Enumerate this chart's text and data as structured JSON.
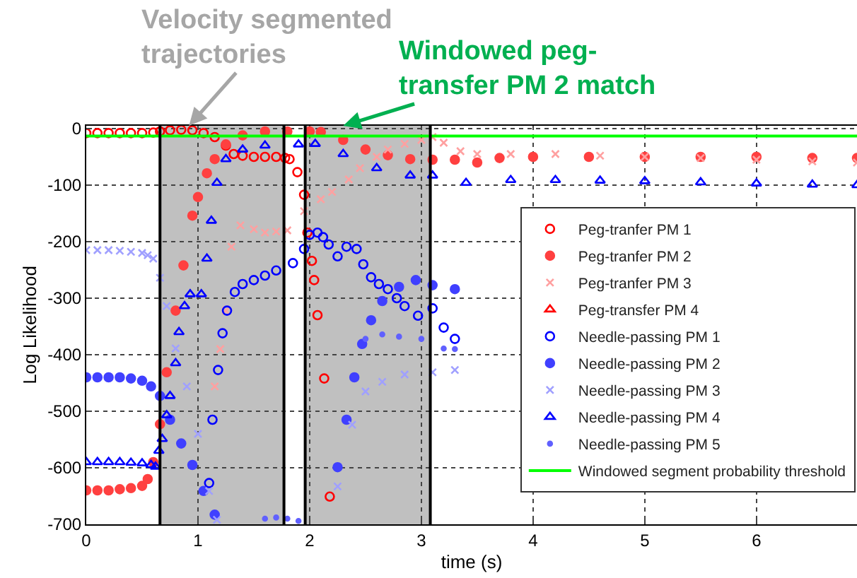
{
  "chart_data": {
    "type": "scatter",
    "xlabel": "time (s)",
    "ylabel": "Log Likelihood",
    "xlim": [
      0,
      6.9
    ],
    "ylim": [
      -700,
      5
    ],
    "xticks": [
      0,
      1,
      2,
      3,
      4,
      5,
      6
    ],
    "yticks": [
      -700,
      -600,
      -500,
      -400,
      -300,
      -200,
      -100,
      0
    ],
    "grid": true,
    "legend": "right",
    "bands": [
      {
        "axis": "x",
        "from": 0.66,
        "to": 1.77,
        "color": "#c0c0c0"
      },
      {
        "axis": "x",
        "from": 1.96,
        "to": 3.08,
        "color": "#c0c0c0"
      }
    ],
    "ref_lines": [
      {
        "axis": "x",
        "value": 0.66,
        "color": "#000000"
      },
      {
        "axis": "x",
        "value": 1.77,
        "color": "#000000"
      },
      {
        "axis": "x",
        "value": 1.96,
        "color": "#000000"
      },
      {
        "axis": "x",
        "value": 3.08,
        "color": "#000000"
      }
    ],
    "annotations": [
      {
        "text": "Velocity segmented\ntrajectories",
        "x": 0.92,
        "y": 5
      },
      {
        "text": "Windowed peg-\ntransfer PM 2 match",
        "x": 2.3,
        "y": 5
      }
    ],
    "series": [
      {
        "name": "Peg-tranfer PM 1",
        "color": "#ff0000",
        "marker": "circle",
        "x": [
          0,
          0.1,
          0.2,
          0.3,
          0.4,
          0.5,
          0.6,
          0.66,
          0.75,
          0.85,
          0.95,
          1.05,
          1.15,
          1.25,
          1.32,
          1.4,
          1.5,
          1.6,
          1.7,
          1.78,
          1.82,
          1.89,
          1.95,
          1.98,
          2.02,
          2.04,
          2.07,
          2.13,
          2.18
        ],
        "values": [
          -8,
          -8,
          -8,
          -8,
          -8,
          -8,
          -7,
          -5,
          -3,
          -2,
          -3,
          -8,
          -15,
          -30,
          -45,
          -48,
          -50,
          -50,
          -50,
          -52,
          -54,
          -77,
          -117,
          -184,
          -234,
          -268,
          -330,
          -442,
          -651
        ]
      },
      {
        "name": "Peg-tranfer PM 2",
        "color": "#ff4040",
        "marker": "circle-filled",
        "x": [
          0,
          0.1,
          0.2,
          0.3,
          0.4,
          0.5,
          0.55,
          0.6,
          0.66,
          0.72,
          0.8,
          0.87,
          0.95,
          1.0,
          1.08,
          1.15,
          1.25,
          1.4,
          1.6,
          1.8,
          2.0,
          2.1,
          2.3,
          2.5,
          2.7,
          2.9,
          3.1,
          3.3,
          3.5,
          3.7,
          4.0,
          4.5,
          5.0,
          5.5,
          6.0,
          6.5,
          6.9
        ],
        "values": [
          -640,
          -640,
          -640,
          -638,
          -636,
          -632,
          -620,
          -590,
          -523,
          -431,
          -322,
          -242,
          -154,
          -121,
          -79,
          -54,
          -28,
          -12,
          -5,
          -5,
          -5,
          -6,
          -20,
          -37,
          -47,
          -54,
          -55,
          -55,
          -60,
          -52,
          -50,
          -50,
          -50,
          -50,
          -50,
          -52,
          -52
        ]
      },
      {
        "name": "Peg-tranfer PM 3",
        "color": "#ffa0a0",
        "marker": "cross",
        "x": [
          1.15,
          1.2,
          1.25,
          1.3,
          1.38,
          1.5,
          1.6,
          1.7,
          1.8,
          1.95,
          2.1,
          2.2,
          2.35,
          2.45,
          2.6,
          2.7,
          2.85,
          3.0,
          3.1,
          3.2,
          3.35,
          3.5,
          3.8,
          4.2,
          4.6,
          5.0,
          5.5,
          6.0,
          6.5,
          6.9
        ],
        "values": [
          -456,
          -390,
          -322,
          -209,
          -171,
          -178,
          -184,
          -182,
          -180,
          -146,
          -125,
          -112,
          -90,
          -70,
          -50,
          -37,
          -27,
          -20,
          -15,
          -25,
          -40,
          -45,
          -45,
          -45,
          -48,
          -50,
          -52,
          -55,
          -58,
          -60
        ]
      },
      {
        "name": "Peg-transfer PM 4",
        "color": "#ff0000",
        "marker": "triangle"
      },
      {
        "name": "Needle-passing PM 1",
        "color": "#0000ff",
        "marker": "circle",
        "x": [
          1.1,
          1.13,
          1.18,
          1.22,
          1.26,
          1.33,
          1.4,
          1.5,
          1.6,
          1.7,
          1.85,
          1.95,
          2.0,
          2.07,
          2.12,
          2.17,
          2.25,
          2.33,
          2.42,
          2.48,
          2.55,
          2.62,
          2.7,
          2.78,
          2.85,
          2.97,
          3.1,
          3.2,
          3.3
        ],
        "values": [
          -627,
          -515,
          -427,
          -362,
          -322,
          -289,
          -275,
          -268,
          -260,
          -251,
          -238,
          -213,
          -188,
          -184,
          -192,
          -205,
          -226,
          -209,
          -213,
          -240,
          -263,
          -275,
          -284,
          -300,
          -314,
          -331,
          -318,
          -352,
          -372
        ]
      },
      {
        "name": "Needle-passing PM 2",
        "color": "#4040ff",
        "marker": "circle-filled",
        "x": [
          0,
          0.1,
          0.2,
          0.3,
          0.4,
          0.5,
          0.58,
          0.66,
          0.75,
          0.85,
          0.95,
          1.05,
          1.15,
          2.25,
          2.33,
          2.4,
          2.47,
          2.55,
          2.65,
          2.8,
          2.95,
          3.1,
          3.3
        ],
        "values": [
          -440,
          -440,
          -440,
          -440,
          -442,
          -446,
          -456,
          -473,
          -515,
          -557,
          -595,
          -641,
          -683,
          -599,
          -515,
          -440,
          -381,
          -339,
          -305,
          -280,
          -268,
          -277,
          -284
        ]
      },
      {
        "name": "Needle-passing PM 3",
        "color": "#a0a0ff",
        "marker": "cross",
        "x": [
          0,
          0.1,
          0.2,
          0.3,
          0.4,
          0.5,
          0.55,
          0.6,
          0.66,
          0.72,
          0.8,
          0.9,
          1.0,
          1.1,
          1.17,
          2.25,
          2.38,
          2.5,
          2.65,
          2.85,
          3.1,
          3.3
        ],
        "values": [
          -215,
          -215,
          -215,
          -216,
          -218,
          -220,
          -224,
          -230,
          -264,
          -314,
          -389,
          -456,
          -540,
          -641,
          -692,
          -633,
          -524,
          -465,
          -448,
          -435,
          -431,
          -427
        ]
      },
      {
        "name": "Needle-passing PM 4",
        "color": "#0000ff",
        "marker": "triangle",
        "x": [
          0,
          0.1,
          0.2,
          0.3,
          0.4,
          0.5,
          0.58,
          0.62,
          0.65,
          0.68,
          0.72,
          0.75,
          0.8,
          0.83,
          0.88,
          0.93,
          1.03,
          1.08,
          1.12,
          1.17,
          1.25,
          1.4,
          1.6,
          1.9,
          2.05,
          2.3,
          2.6,
          2.9,
          3.1,
          3.4,
          3.8,
          4.2,
          4.6,
          5.0,
          5.5,
          6.0,
          6.5,
          6.9
        ],
        "values": [
          -590,
          -590,
          -590,
          -590,
          -591,
          -592,
          -595,
          -598,
          -570,
          -549,
          -507,
          -473,
          -415,
          -360,
          -314,
          -293,
          -293,
          -230,
          -163,
          -96,
          -54,
          -37,
          -30,
          -28,
          -27,
          -45,
          -70,
          -83,
          -83,
          -96,
          -91,
          -91,
          -92,
          -93,
          -95,
          -97,
          -99,
          -100
        ]
      },
      {
        "name": "Needle-passing PM 5",
        "color": "#6060ff",
        "marker": "dot",
        "x": [
          1.6,
          1.7,
          1.8,
          1.9,
          2.5,
          2.65,
          2.8,
          3.0,
          3.2,
          3.3
        ],
        "values": [
          -690,
          -688,
          -690,
          -694,
          -372,
          -364,
          -368,
          -372,
          -389,
          -390
        ]
      },
      {
        "name": "Windowed segment probability threshold",
        "type": "line",
        "color": "#00ff00",
        "marker": "none",
        "x": [
          0,
          6.9
        ],
        "values": [
          -13,
          -13
        ]
      }
    ]
  }
}
